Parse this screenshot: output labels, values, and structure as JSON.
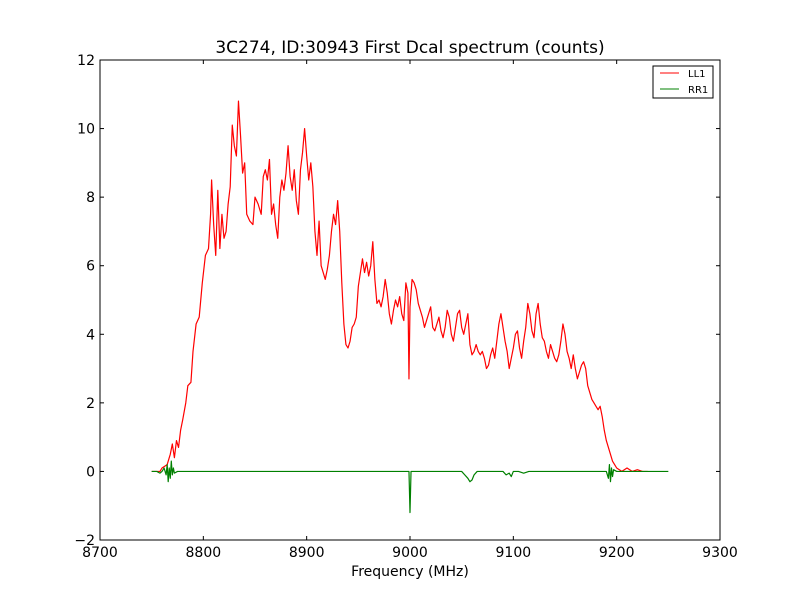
{
  "chart_data": {
    "type": "line",
    "title": "3C274, ID:30943 First Dcal spectrum (counts)",
    "xlabel": "Frequency (MHz)",
    "ylabel": "",
    "xlim": [
      8700,
      9300
    ],
    "ylim": [
      -2,
      12
    ],
    "xticks": [
      8700,
      8800,
      8900,
      9000,
      9100,
      9200,
      9300
    ],
    "yticks": [
      -2,
      0,
      2,
      4,
      6,
      8,
      10,
      12
    ],
    "xtick_labels": [
      "8700",
      "8800",
      "8900",
      "9000",
      "9100",
      "9200",
      "9300"
    ],
    "ytick_labels": [
      "−2",
      "0",
      "2",
      "4",
      "6",
      "8",
      "10",
      "12"
    ],
    "grid": false,
    "legend_position": "top-right",
    "series": [
      {
        "name": "LL1",
        "color": "#ff0000",
        "points": [
          [
            8750,
            0.0
          ],
          [
            8758,
            0.0
          ],
          [
            8760,
            0.1
          ],
          [
            8765,
            0.2
          ],
          [
            8768,
            0.5
          ],
          [
            8770,
            0.8
          ],
          [
            8772,
            0.4
          ],
          [
            8774,
            0.9
          ],
          [
            8776,
            0.7
          ],
          [
            8778,
            1.2
          ],
          [
            8780,
            1.5
          ],
          [
            8783,
            2.0
          ],
          [
            8785,
            2.5
          ],
          [
            8788,
            2.6
          ],
          [
            8790,
            3.5
          ],
          [
            8793,
            4.3
          ],
          [
            8796,
            4.5
          ],
          [
            8799,
            5.5
          ],
          [
            8802,
            6.3
          ],
          [
            8805,
            6.5
          ],
          [
            8807,
            7.5
          ],
          [
            8808,
            8.5
          ],
          [
            8810,
            7.2
          ],
          [
            8812,
            6.3
          ],
          [
            8814,
            8.2
          ],
          [
            8816,
            6.5
          ],
          [
            8818,
            7.5
          ],
          [
            8820,
            6.8
          ],
          [
            8822,
            7.0
          ],
          [
            8824,
            7.8
          ],
          [
            8826,
            8.3
          ],
          [
            8828,
            10.1
          ],
          [
            8830,
            9.5
          ],
          [
            8832,
            9.2
          ],
          [
            8834,
            10.8
          ],
          [
            8836,
            9.8
          ],
          [
            8838,
            8.7
          ],
          [
            8840,
            9.0
          ],
          [
            8842,
            7.5
          ],
          [
            8845,
            7.3
          ],
          [
            8848,
            7.2
          ],
          [
            8850,
            8.0
          ],
          [
            8853,
            7.8
          ],
          [
            8856,
            7.5
          ],
          [
            8858,
            8.6
          ],
          [
            8860,
            8.8
          ],
          [
            8862,
            8.5
          ],
          [
            8864,
            9.1
          ],
          [
            8866,
            7.5
          ],
          [
            8868,
            7.8
          ],
          [
            8870,
            7.2
          ],
          [
            8872,
            6.8
          ],
          [
            8874,
            8.0
          ],
          [
            8876,
            8.5
          ],
          [
            8878,
            8.2
          ],
          [
            8880,
            8.7
          ],
          [
            8882,
            9.5
          ],
          [
            8884,
            8.6
          ],
          [
            8886,
            8.2
          ],
          [
            8888,
            8.8
          ],
          [
            8890,
            7.9
          ],
          [
            8892,
            7.5
          ],
          [
            8894,
            8.8
          ],
          [
            8896,
            9.3
          ],
          [
            8898,
            10.0
          ],
          [
            8900,
            9.2
          ],
          [
            8902,
            8.5
          ],
          [
            8904,
            9.0
          ],
          [
            8906,
            8.3
          ],
          [
            8908,
            7.0
          ],
          [
            8910,
            6.3
          ],
          [
            8912,
            7.3
          ],
          [
            8914,
            6.0
          ],
          [
            8916,
            5.8
          ],
          [
            8918,
            5.6
          ],
          [
            8920,
            5.9
          ],
          [
            8922,
            6.3
          ],
          [
            8924,
            7.0
          ],
          [
            8926,
            7.5
          ],
          [
            8928,
            7.2
          ],
          [
            8930,
            7.9
          ],
          [
            8932,
            7.0
          ],
          [
            8934,
            5.5
          ],
          [
            8936,
            4.3
          ],
          [
            8938,
            3.7
          ],
          [
            8940,
            3.6
          ],
          [
            8942,
            3.8
          ],
          [
            8944,
            4.2
          ],
          [
            8946,
            4.3
          ],
          [
            8948,
            4.5
          ],
          [
            8950,
            5.4
          ],
          [
            8952,
            5.8
          ],
          [
            8954,
            6.2
          ],
          [
            8956,
            5.8
          ],
          [
            8958,
            6.1
          ],
          [
            8960,
            5.7
          ],
          [
            8962,
            6.0
          ],
          [
            8964,
            6.7
          ],
          [
            8966,
            5.6
          ],
          [
            8968,
            4.9
          ],
          [
            8970,
            5.0
          ],
          [
            8972,
            4.8
          ],
          [
            8974,
            5.1
          ],
          [
            8976,
            5.6
          ],
          [
            8978,
            5.2
          ],
          [
            8980,
            4.6
          ],
          [
            8982,
            4.3
          ],
          [
            8984,
            4.7
          ],
          [
            8986,
            5.0
          ],
          [
            8988,
            4.8
          ],
          [
            8990,
            5.1
          ],
          [
            8992,
            4.6
          ],
          [
            8994,
            4.4
          ],
          [
            8996,
            5.5
          ],
          [
            8998,
            5.2
          ],
          [
            8999,
            2.7
          ],
          [
            9000,
            4.8
          ],
          [
            9002,
            5.6
          ],
          [
            9004,
            5.5
          ],
          [
            9006,
            5.3
          ],
          [
            9008,
            4.9
          ],
          [
            9010,
            4.7
          ],
          [
            9012,
            4.5
          ],
          [
            9014,
            4.2
          ],
          [
            9016,
            4.4
          ],
          [
            9018,
            4.6
          ],
          [
            9020,
            4.8
          ],
          [
            9022,
            4.2
          ],
          [
            9024,
            4.1
          ],
          [
            9026,
            4.3
          ],
          [
            9028,
            4.5
          ],
          [
            9030,
            4.1
          ],
          [
            9032,
            3.9
          ],
          [
            9034,
            4.2
          ],
          [
            9036,
            4.7
          ],
          [
            9038,
            4.5
          ],
          [
            9040,
            4.0
          ],
          [
            9042,
            3.8
          ],
          [
            9044,
            4.2
          ],
          [
            9046,
            4.6
          ],
          [
            9048,
            4.7
          ],
          [
            9050,
            4.2
          ],
          [
            9052,
            4.0
          ],
          [
            9054,
            4.3
          ],
          [
            9056,
            4.6
          ],
          [
            9058,
            3.7
          ],
          [
            9060,
            3.4
          ],
          [
            9062,
            3.5
          ],
          [
            9064,
            3.7
          ],
          [
            9066,
            3.5
          ],
          [
            9068,
            3.4
          ],
          [
            9070,
            3.5
          ],
          [
            9072,
            3.3
          ],
          [
            9074,
            3.0
          ],
          [
            9076,
            3.1
          ],
          [
            9078,
            3.4
          ],
          [
            9080,
            3.6
          ],
          [
            9082,
            3.3
          ],
          [
            9084,
            3.8
          ],
          [
            9086,
            4.3
          ],
          [
            9088,
            4.6
          ],
          [
            9090,
            4.2
          ],
          [
            9092,
            3.8
          ],
          [
            9094,
            3.5
          ],
          [
            9096,
            3.0
          ],
          [
            9098,
            3.3
          ],
          [
            9100,
            3.6
          ],
          [
            9102,
            4.0
          ],
          [
            9104,
            4.1
          ],
          [
            9106,
            3.6
          ],
          [
            9108,
            3.3
          ],
          [
            9110,
            3.8
          ],
          [
            9112,
            4.2
          ],
          [
            9114,
            4.9
          ],
          [
            9116,
            4.6
          ],
          [
            9118,
            4.1
          ],
          [
            9120,
            3.9
          ],
          [
            9122,
            4.6
          ],
          [
            9124,
            4.9
          ],
          [
            9126,
            4.3
          ],
          [
            9128,
            3.9
          ],
          [
            9130,
            3.8
          ],
          [
            9132,
            3.5
          ],
          [
            9134,
            3.3
          ],
          [
            9136,
            3.7
          ],
          [
            9138,
            3.5
          ],
          [
            9140,
            3.3
          ],
          [
            9142,
            3.2
          ],
          [
            9144,
            3.4
          ],
          [
            9146,
            3.8
          ],
          [
            9148,
            4.3
          ],
          [
            9150,
            4.0
          ],
          [
            9152,
            3.5
          ],
          [
            9154,
            3.3
          ],
          [
            9156,
            3.0
          ],
          [
            9158,
            3.4
          ],
          [
            9160,
            3.0
          ],
          [
            9162,
            2.7
          ],
          [
            9164,
            2.9
          ],
          [
            9166,
            3.1
          ],
          [
            9168,
            3.2
          ],
          [
            9170,
            3.0
          ],
          [
            9172,
            2.5
          ],
          [
            9174,
            2.3
          ],
          [
            9176,
            2.1
          ],
          [
            9178,
            2.0
          ],
          [
            9180,
            1.9
          ],
          [
            9182,
            1.8
          ],
          [
            9184,
            1.9
          ],
          [
            9186,
            1.6
          ],
          [
            9188,
            1.2
          ],
          [
            9190,
            0.9
          ],
          [
            9192,
            0.7
          ],
          [
            9194,
            0.5
          ],
          [
            9196,
            0.3
          ],
          [
            9198,
            0.2
          ],
          [
            9200,
            0.1
          ],
          [
            9205,
            0.0
          ],
          [
            9210,
            0.1
          ],
          [
            9215,
            0.0
          ],
          [
            9220,
            0.05
          ],
          [
            9225,
            0.0
          ],
          [
            9230,
            0.0
          ]
        ]
      },
      {
        "name": "RR1",
        "color": "#008000",
        "points": [
          [
            8750,
            0.0
          ],
          [
            8755,
            0.0
          ],
          [
            8758,
            -0.05
          ],
          [
            8760,
            0.0
          ],
          [
            8762,
            0.1
          ],
          [
            8764,
            -0.1
          ],
          [
            8765,
            0.2
          ],
          [
            8766,
            -0.3
          ],
          [
            8767,
            0.1
          ],
          [
            8768,
            -0.2
          ],
          [
            8769,
            0.3
          ],
          [
            8770,
            -0.1
          ],
          [
            8771,
            0.1
          ],
          [
            8772,
            -0.05
          ],
          [
            8775,
            0.0
          ],
          [
            8790,
            0.0
          ],
          [
            8850,
            0.0
          ],
          [
            8950,
            0.0
          ],
          [
            8995,
            0.0
          ],
          [
            8999,
            0.0
          ],
          [
            9000,
            -1.2
          ],
          [
            9001,
            0.0
          ],
          [
            9050,
            0.0
          ],
          [
            9053,
            -0.1
          ],
          [
            9056,
            -0.2
          ],
          [
            9058,
            -0.3
          ],
          [
            9060,
            -0.25
          ],
          [
            9062,
            -0.1
          ],
          [
            9065,
            0.0
          ],
          [
            9090,
            0.0
          ],
          [
            9093,
            -0.1
          ],
          [
            9096,
            -0.05
          ],
          [
            9098,
            -0.15
          ],
          [
            9100,
            0.0
          ],
          [
            9105,
            0.0
          ],
          [
            9110,
            -0.05
          ],
          [
            9115,
            0.0
          ],
          [
            9180,
            0.0
          ],
          [
            9190,
            0.0
          ],
          [
            9192,
            -0.2
          ],
          [
            9193,
            0.2
          ],
          [
            9194,
            -0.3
          ],
          [
            9195,
            0.1
          ],
          [
            9196,
            -0.15
          ],
          [
            9197,
            0.05
          ],
          [
            9200,
            0.0
          ],
          [
            9210,
            0.0
          ],
          [
            9230,
            0.0
          ],
          [
            9250,
            0.0
          ]
        ]
      }
    ]
  }
}
